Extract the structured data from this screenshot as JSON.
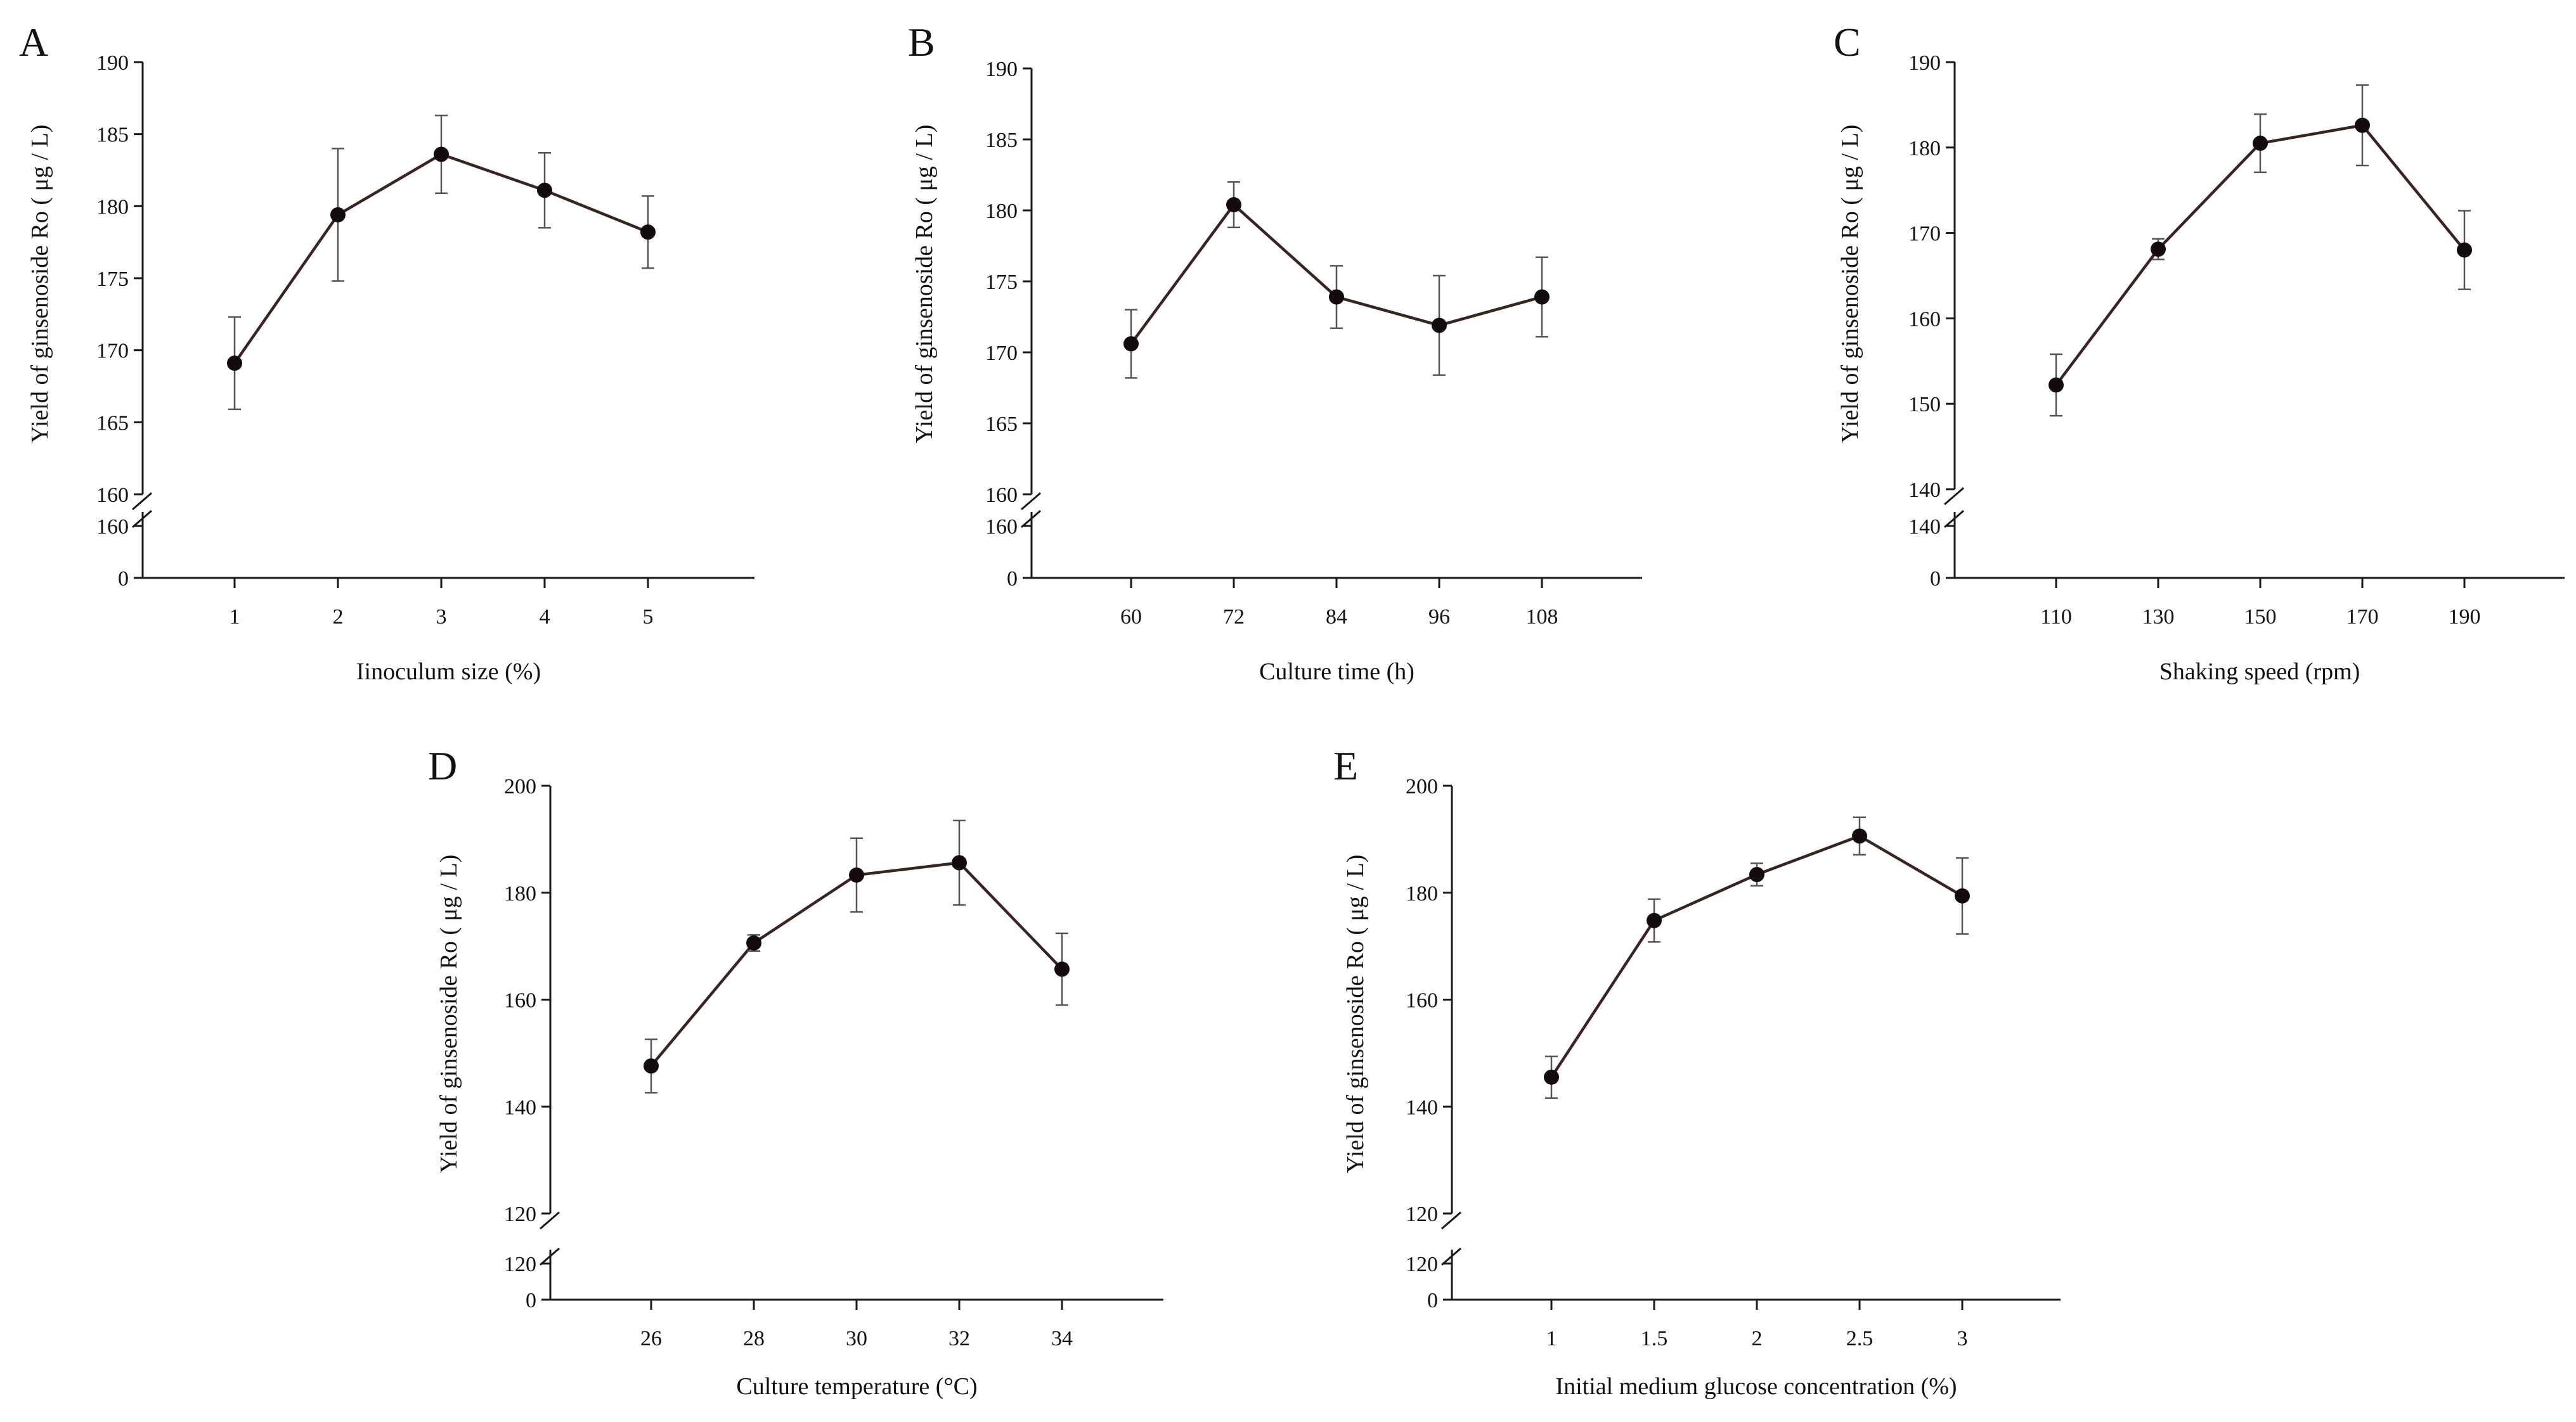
{
  "chart_data": [
    {
      "type": "line",
      "panel": "A",
      "xlabel": "Iinoculum size (%)",
      "ylabel": "Yield of ginsenoside Ro ( μg / L)",
      "categories": [
        "1",
        "2",
        "3",
        "4",
        "5"
      ],
      "values": [
        169.1,
        179.4,
        183.6,
        181.1,
        178.2
      ],
      "errors": [
        3.2,
        4.6,
        2.7,
        2.6,
        2.5
      ],
      "ylim": [
        160,
        190
      ],
      "yticks": [
        "160",
        "165",
        "170",
        "175",
        "180",
        "185",
        "190"
      ],
      "y_break": {
        "lower_ticks": [
          "0",
          "160"
        ]
      }
    },
    {
      "type": "line",
      "panel": "B",
      "xlabel": "Culture time (h)",
      "ylabel": "Yield of ginsenoside Ro ( μg / L)",
      "categories": [
        "60",
        "72",
        "84",
        "96",
        "108"
      ],
      "values": [
        170.6,
        180.4,
        173.9,
        171.9,
        173.9
      ],
      "errors": [
        2.4,
        1.6,
        2.2,
        3.5,
        2.8
      ],
      "ylim": [
        160,
        190
      ],
      "yticks": [
        "160",
        "165",
        "170",
        "175",
        "180",
        "185",
        "190"
      ],
      "y_break": {
        "lower_ticks": [
          "0",
          "160"
        ]
      }
    },
    {
      "type": "line",
      "panel": "C",
      "xlabel": "Shaking speed (rpm)",
      "ylabel": "Yield of ginsenoside Ro ( μg / L)",
      "categories": [
        "110",
        "130",
        "150",
        "170",
        "190"
      ],
      "values": [
        152.2,
        168.1,
        180.5,
        182.6,
        168.0
      ],
      "errors": [
        3.6,
        1.2,
        3.4,
        4.7,
        4.6
      ],
      "ylim": [
        140,
        190
      ],
      "yticks": [
        "140",
        "150",
        "160",
        "170",
        "180",
        "190"
      ],
      "y_break": {
        "lower_ticks": [
          "0",
          "140"
        ]
      }
    },
    {
      "type": "line",
      "panel": "D",
      "xlabel": "Culture temperature (°C)",
      "ylabel": "Yield of ginsenoside Ro ( μg / L)",
      "categories": [
        "26",
        "28",
        "30",
        "32",
        "34"
      ],
      "values": [
        147.6,
        170.6,
        183.3,
        185.6,
        165.7
      ],
      "errors": [
        5.0,
        1.5,
        6.9,
        7.9,
        6.7
      ],
      "ylim": [
        120,
        200
      ],
      "yticks": [
        "120",
        "140",
        "160",
        "180",
        "200"
      ],
      "y_break": {
        "lower_ticks": [
          "0",
          "120"
        ]
      }
    },
    {
      "type": "line",
      "panel": "E",
      "xlabel": "Initial medium glucose concentration (%)",
      "ylabel": "Yield of ginsenoside Ro ( μg / L)",
      "categories": [
        "1",
        "1.5",
        "2",
        "2.5",
        "3"
      ],
      "values": [
        145.5,
        174.8,
        183.4,
        190.6,
        179.4
      ],
      "errors": [
        3.9,
        4.0,
        2.1,
        3.5,
        7.1
      ],
      "ylim": [
        120,
        200
      ],
      "yticks": [
        "120",
        "140",
        "160",
        "180",
        "200"
      ],
      "y_break": {
        "lower_ticks": [
          "0",
          "120"
        ]
      }
    }
  ]
}
